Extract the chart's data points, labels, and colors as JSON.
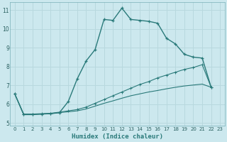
{
  "title": "",
  "xlabel": "Humidex (Indice chaleur)",
  "bg_color": "#cce8ee",
  "grid_color": "#b8d8de",
  "line_color": "#2a7a7a",
  "xlim": [
    -0.5,
    23.5
  ],
  "ylim": [
    4.85,
    11.4
  ],
  "xticks": [
    0,
    1,
    2,
    3,
    4,
    5,
    6,
    7,
    8,
    9,
    10,
    11,
    12,
    13,
    14,
    15,
    16,
    17,
    18,
    19,
    20,
    21,
    22,
    23
  ],
  "yticks": [
    5,
    6,
    7,
    8,
    9,
    10,
    11
  ],
  "curve1_x": [
    0,
    1,
    2,
    3,
    4,
    5,
    6,
    7,
    8,
    9,
    10,
    11,
    12,
    13,
    14,
    15,
    16,
    17,
    18,
    19,
    20,
    21,
    22
  ],
  "curve1_y": [
    6.55,
    5.45,
    5.45,
    5.48,
    5.5,
    5.55,
    6.15,
    7.35,
    8.3,
    8.9,
    10.5,
    10.45,
    11.1,
    10.5,
    10.45,
    10.4,
    10.3,
    9.5,
    9.2,
    8.65,
    8.5,
    8.45,
    6.9
  ],
  "curve2_x": [
    0,
    1,
    2,
    3,
    4,
    5,
    6,
    7,
    8,
    9,
    10,
    11,
    12,
    13,
    14,
    15,
    16,
    17,
    18,
    19,
    20,
    21,
    22
  ],
  "curve2_y": [
    6.55,
    5.48,
    5.48,
    5.5,
    5.52,
    5.58,
    5.65,
    5.72,
    5.85,
    6.05,
    6.25,
    6.45,
    6.65,
    6.85,
    7.05,
    7.2,
    7.4,
    7.55,
    7.7,
    7.85,
    7.95,
    8.1,
    6.9
  ],
  "curve3_x": [
    0,
    1,
    2,
    3,
    4,
    5,
    6,
    7,
    8,
    9,
    10,
    11,
    12,
    13,
    14,
    15,
    16,
    17,
    18,
    19,
    20,
    21,
    22
  ],
  "curve3_y": [
    6.55,
    5.46,
    5.46,
    5.48,
    5.5,
    5.56,
    5.6,
    5.65,
    5.75,
    5.9,
    6.05,
    6.18,
    6.32,
    6.45,
    6.55,
    6.65,
    6.73,
    6.82,
    6.9,
    6.97,
    7.02,
    7.07,
    6.9
  ]
}
